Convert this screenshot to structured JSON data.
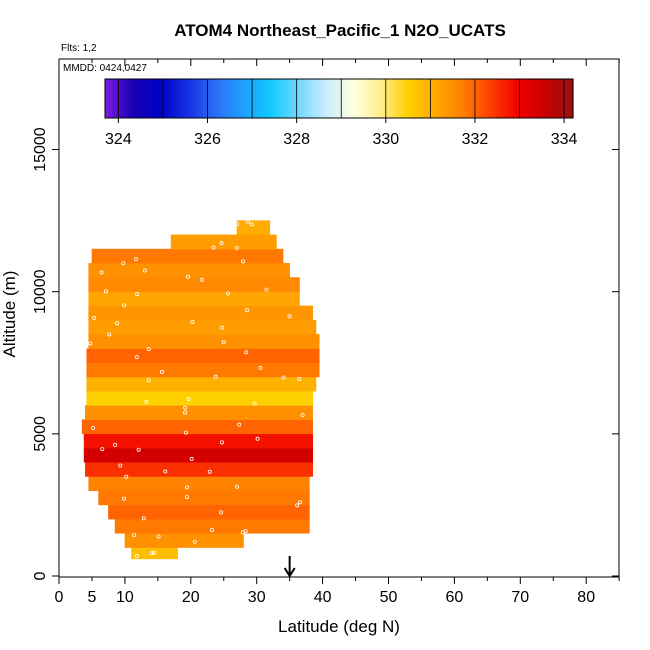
{
  "chart_data": {
    "type": "heatmap",
    "title": "ATOM4 Northeast_Pacific_1 N2O_UCATS",
    "flights_note": "Flts: 1,2",
    "dates_note": "MMDD: 0424,0427",
    "xlabel": "Latitude (deg N)",
    "ylabel": "Altitude (m)",
    "xlim": [
      0,
      85
    ],
    "ylim": [
      0,
      18000
    ],
    "x_ticks": [
      0,
      10,
      20,
      30,
      40,
      50,
      60,
      70,
      80
    ],
    "x_tick_labels": [
      "0",
      "5",
      "10",
      "20",
      "30",
      "40",
      "50",
      "60",
      "70",
      "80"
    ],
    "x_tick_label_values": [
      0,
      5,
      10,
      20,
      30,
      40,
      50,
      60,
      70,
      80
    ],
    "x_minor_ticks": [
      5,
      15,
      25,
      35,
      45,
      55,
      65,
      75,
      85
    ],
    "y_ticks": [
      0,
      5000,
      10000,
      15000
    ],
    "y_tick_labels": [
      "0",
      "5000",
      "10000",
      "15000"
    ],
    "colorbar": {
      "min": 323.7,
      "max": 334.2,
      "tick_values": [
        324,
        326,
        328,
        330,
        332,
        334
      ],
      "tick_labels": [
        "324",
        "326",
        "328",
        "330",
        "332",
        "334"
      ],
      "colors": [
        "#7a1ee6",
        "#1a00b0",
        "#0000c8",
        "#1530e0",
        "#2e6cf5",
        "#1ea0ff",
        "#0fc8ff",
        "#70d8ff",
        "#c8ecff",
        "#ffffe0",
        "#fff090",
        "#ffd000",
        "#ffaa00",
        "#ff8000",
        "#ff4000",
        "#f00000",
        "#c80000",
        "#9a1010"
      ]
    },
    "marker": {
      "x": 35,
      "label": "arrow"
    },
    "grid": false,
    "bands": [
      {
        "y0": 600,
        "y1": 1000,
        "x0": 11,
        "x1": 18,
        "value": 330.8
      },
      {
        "y0": 1000,
        "y1": 1500,
        "x0": 10,
        "x1": 28,
        "value": 331.5
      },
      {
        "y0": 1500,
        "y1": 2000,
        "x0": 8.5,
        "x1": 38,
        "value": 331.8
      },
      {
        "y0": 2000,
        "y1": 2500,
        "x0": 7.5,
        "x1": 38,
        "value": 332.0
      },
      {
        "y0": 2500,
        "y1": 3000,
        "x0": 6,
        "x1": 38,
        "value": 331.8
      },
      {
        "y0": 3000,
        "y1": 3500,
        "x0": 4.5,
        "x1": 38,
        "value": 331.7
      },
      {
        "y0": 3500,
        "y1": 4000,
        "x0": 4,
        "x1": 38.5,
        "value": 332.5
      },
      {
        "y0": 4000,
        "y1": 4500,
        "x0": 3.8,
        "x1": 38.5,
        "value": 333.4
      },
      {
        "y0": 4500,
        "y1": 5000,
        "x0": 3.8,
        "x1": 38.5,
        "value": 332.8
      },
      {
        "y0": 5000,
        "y1": 5500,
        "x0": 3.5,
        "x1": 38.5,
        "value": 332.0
      },
      {
        "y0": 5500,
        "y1": 6000,
        "x0": 4,
        "x1": 38.5,
        "value": 331.5
      },
      {
        "y0": 6000,
        "y1": 6500,
        "x0": 4.2,
        "x1": 38.5,
        "value": 330.5
      },
      {
        "y0": 6500,
        "y1": 7000,
        "x0": 4.2,
        "x1": 39,
        "value": 331.0
      },
      {
        "y0": 7000,
        "y1": 7500,
        "x0": 4.2,
        "x1": 39.5,
        "value": 331.8
      },
      {
        "y0": 7500,
        "y1": 8000,
        "x0": 4.2,
        "x1": 39.5,
        "value": 332.0
      },
      {
        "y0": 8000,
        "y1": 8500,
        "x0": 4.5,
        "x1": 39.5,
        "value": 331.5
      },
      {
        "y0": 8500,
        "y1": 9000,
        "x0": 4.5,
        "x1": 39,
        "value": 331.3
      },
      {
        "y0": 9000,
        "y1": 9500,
        "x0": 4.5,
        "x1": 38.5,
        "value": 331.4
      },
      {
        "y0": 9500,
        "y1": 10000,
        "x0": 4.5,
        "x1": 36.5,
        "value": 331.2
      },
      {
        "y0": 10000,
        "y1": 10500,
        "x0": 4.5,
        "x1": 36.5,
        "value": 331.6
      },
      {
        "y0": 10500,
        "y1": 11000,
        "x0": 4.5,
        "x1": 35,
        "value": 331.5
      },
      {
        "y0": 11000,
        "y1": 11500,
        "x0": 5,
        "x1": 34,
        "value": 331.8
      },
      {
        "y0": 11500,
        "y1": 12000,
        "x0": 17,
        "x1": 33,
        "value": 331.3
      },
      {
        "y0": 12000,
        "y1": 12500,
        "x0": 27,
        "x1": 32,
        "value": 331.1
      }
    ]
  }
}
